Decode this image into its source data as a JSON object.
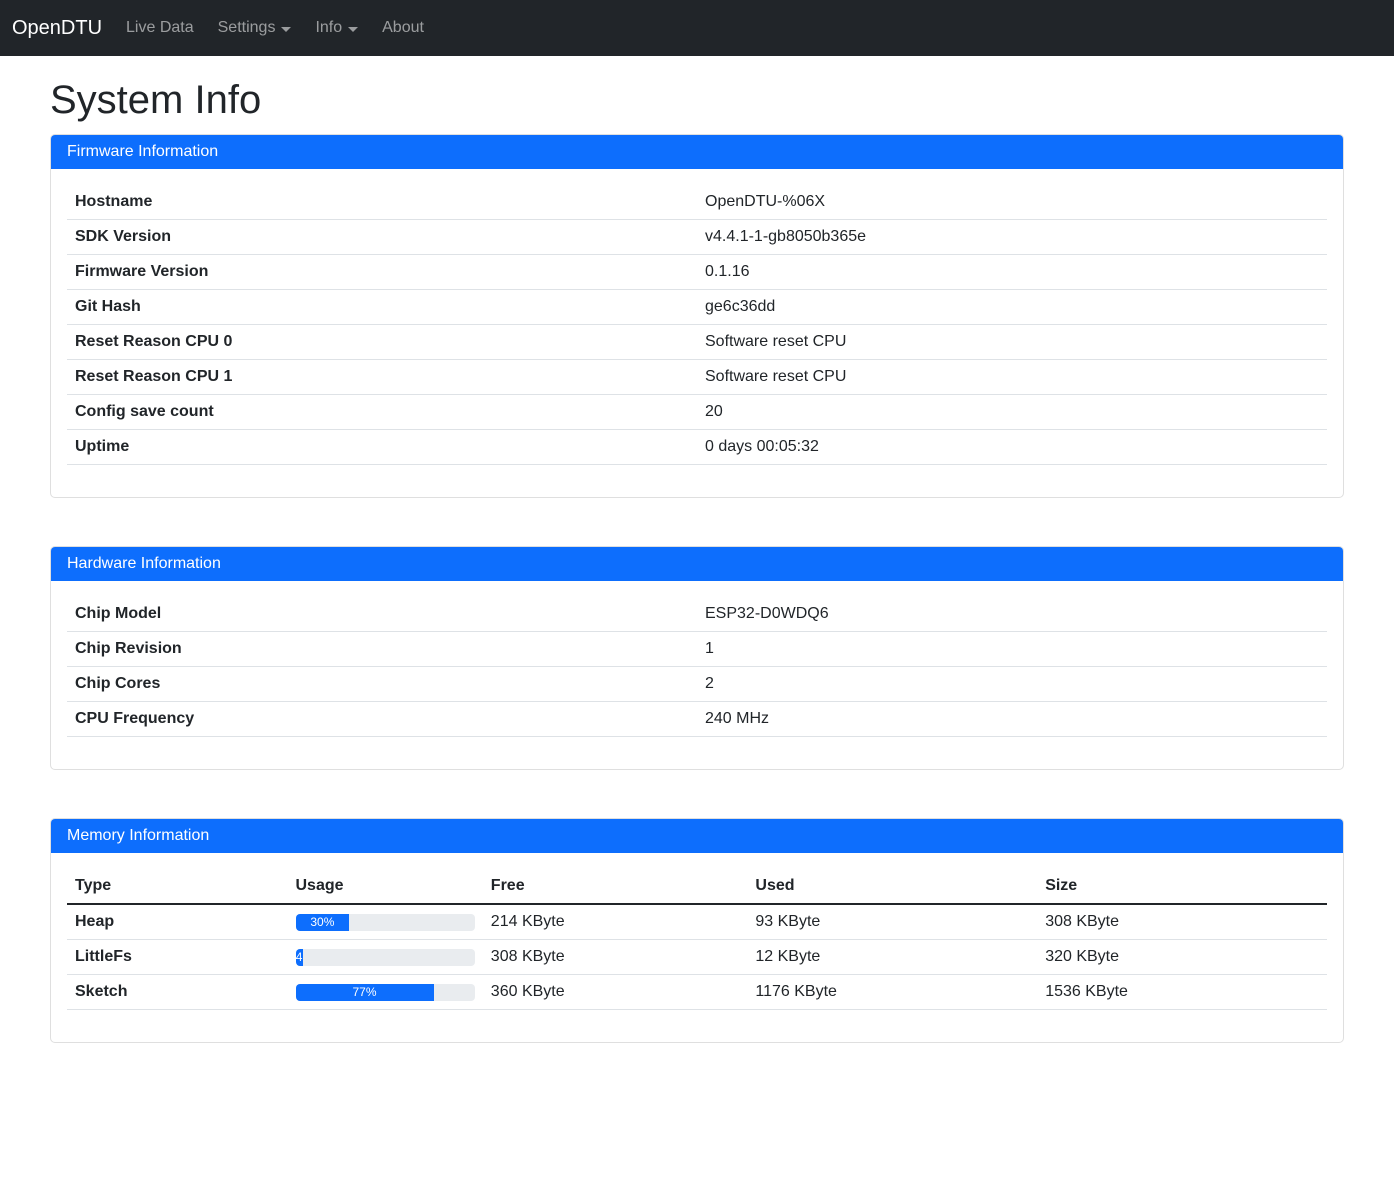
{
  "navbar": {
    "brand": "OpenDTU",
    "items": [
      {
        "label": "Live Data",
        "dropdown": false
      },
      {
        "label": "Settings",
        "dropdown": true
      },
      {
        "label": "Info",
        "dropdown": true
      },
      {
        "label": "About",
        "dropdown": false
      }
    ]
  },
  "page": {
    "title": "System Info"
  },
  "cards": {
    "firmware": {
      "header": "Firmware Information",
      "rows": [
        {
          "label": "Hostname",
          "value": "OpenDTU-%06X"
        },
        {
          "label": "SDK Version",
          "value": "v4.4.1-1-gb8050b365e"
        },
        {
          "label": "Firmware Version",
          "value": "0.1.16"
        },
        {
          "label": "Git Hash",
          "value": "ge6c36dd"
        },
        {
          "label": "Reset Reason CPU 0",
          "value": "Software reset CPU"
        },
        {
          "label": "Reset Reason CPU 1",
          "value": "Software reset CPU"
        },
        {
          "label": "Config save count",
          "value": "20"
        },
        {
          "label": "Uptime",
          "value": "0 days 00:05:32"
        }
      ]
    },
    "hardware": {
      "header": "Hardware Information",
      "rows": [
        {
          "label": "Chip Model",
          "value": "ESP32-D0WDQ6"
        },
        {
          "label": "Chip Revision",
          "value": "1"
        },
        {
          "label": "Chip Cores",
          "value": "2"
        },
        {
          "label": "CPU Frequency",
          "value": "240 MHz"
        }
      ]
    },
    "memory": {
      "header": "Memory Information",
      "columns": [
        "Type",
        "Usage",
        "Free",
        "Used",
        "Size"
      ],
      "rows": [
        {
          "type": "Heap",
          "usage_percent": 30,
          "usage_label": "30%",
          "free": "214 KByte",
          "used": "93 KByte",
          "size": "308 KByte"
        },
        {
          "type": "LittleFs",
          "usage_percent": 4,
          "usage_label": "4",
          "free": "308 KByte",
          "used": "12 KByte",
          "size": "320 KByte"
        },
        {
          "type": "Sketch",
          "usage_percent": 77,
          "usage_label": "77%",
          "free": "360 KByte",
          "used": "1176 KByte",
          "size": "1536 KByte"
        }
      ]
    }
  },
  "colors": {
    "primary": "#0d6efd",
    "navbar_bg": "#212529",
    "progress_track": "#e9ecef"
  }
}
